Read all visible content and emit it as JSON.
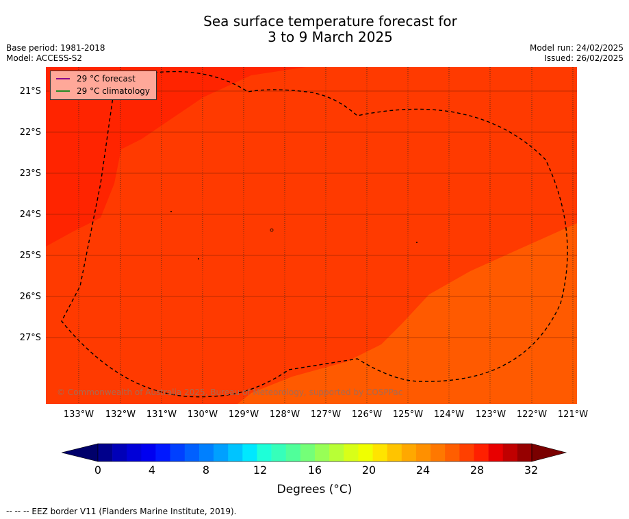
{
  "title_line1": "Sea surface temperature forecast for",
  "title_line2": "3 to 9 March 2025",
  "meta": {
    "base_period": "Base period: 1981-2018",
    "model": "Model: ACCESS-S2",
    "model_run": "Model run: 24/02/2025",
    "issued": "Issued: 26/02/2025"
  },
  "legend": {
    "forecast": "29 °C  forecast",
    "forecast_color": "#8b008b",
    "climatology": "29 °C  climatology",
    "climatology_color": "#228b22"
  },
  "latitudes": [
    "21°S",
    "22°S",
    "23°S",
    "24°S",
    "25°S",
    "26°S",
    "27°S"
  ],
  "longitudes": [
    "133°W",
    "132°W",
    "131°W",
    "130°W",
    "129°W",
    "128°W",
    "127°W",
    "126°W",
    "125°W",
    "124°W",
    "123°W",
    "122°W",
    "121°W"
  ],
  "copyright": "© Commonwealth of Australia 2025, Bureau of Meteorology, supported by COSPPac",
  "colorbar": {
    "ticks": [
      "0",
      "4",
      "8",
      "12",
      "16",
      "20",
      "24",
      "28",
      "32"
    ],
    "title": "Degrees (°C)",
    "colors": [
      "#00008b",
      "#0000b8",
      "#0000d8",
      "#0000f0",
      "#0018ff",
      "#0040ff",
      "#0060ff",
      "#0080ff",
      "#00a0ff",
      "#00c4ff",
      "#00e8ff",
      "#1effd8",
      "#36ffba",
      "#50ff9a",
      "#74ff78",
      "#98ff56",
      "#b8ff36",
      "#d8ff18",
      "#f0ff00",
      "#ffe400",
      "#ffc400",
      "#ffa800",
      "#ff9000",
      "#ff7800",
      "#ff5e00",
      "#ff4000",
      "#ff2000",
      "#e80000",
      "#c00000",
      "#960000"
    ]
  },
  "footer": "--  --  -- EEZ border V11 (Flanders Marine Institute, 2019)."
}
